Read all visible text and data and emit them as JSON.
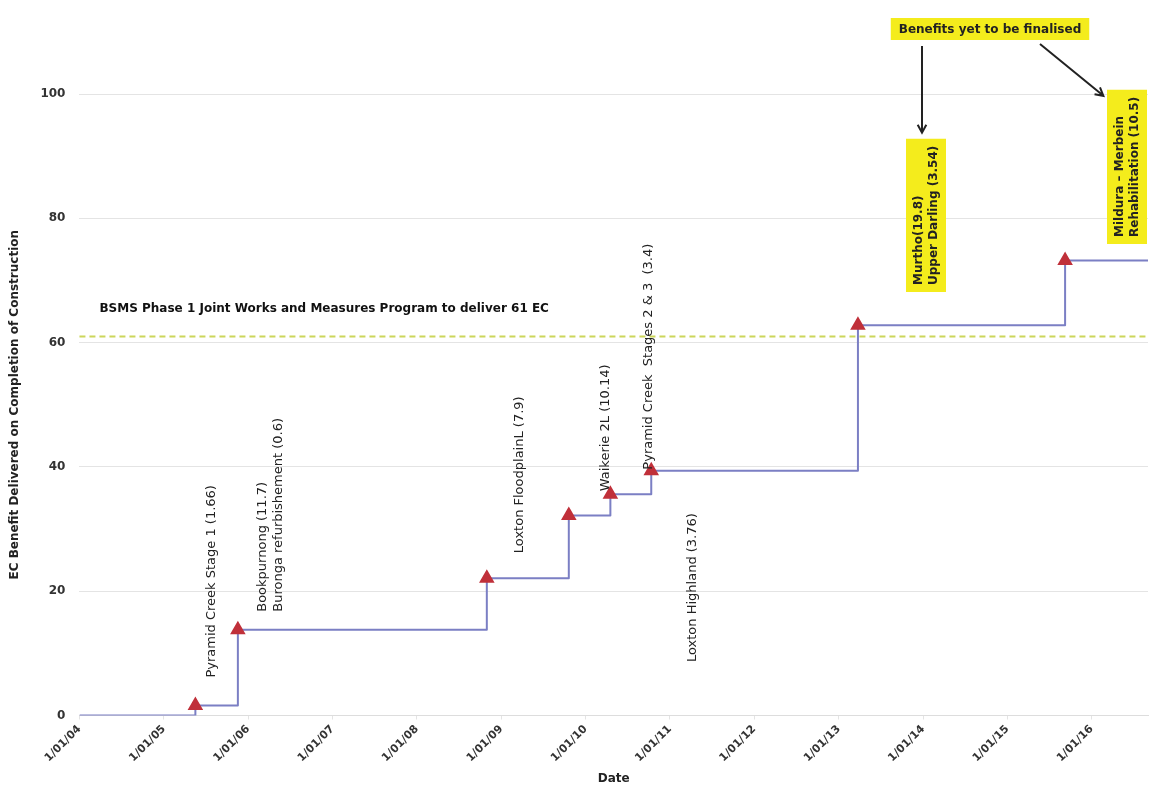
{
  "chart_data": {
    "type": "step",
    "xlabel": "Date",
    "ylabel": "EC Benefit Delivered on Completion of Construction",
    "x": [
      "2004-01-01",
      "2005-05-17",
      "2005-11-17",
      "2008-10-30",
      "2009-10-20",
      "2010-04-18",
      "2010-10-12",
      "2013-03-25",
      "2015-09-08",
      "2016-09-01"
    ],
    "series": [
      {
        "color": "#7b7fc4",
        "values": [
          0,
          1.6,
          13.8,
          22.1,
          32.2,
          35.6,
          39.4,
          62.8,
          73.2,
          73.2
        ],
        "colors": [
          null,
          "#c0303a",
          "#c0303a",
          "#c0303a",
          "#c0303a",
          "#c0303a",
          "#c0303a",
          "#c0303a",
          "#c0303a",
          null
        ]
      }
    ],
    "marker": "triangle",
    "xlim": [
      "2004-01-01",
      "2016-09-01"
    ],
    "xticks": [
      {
        "value": "2004-01-01",
        "label": "1/01/04"
      },
      {
        "value": "2005-01-01",
        "label": "1/01/05"
      },
      {
        "value": "2006-01-01",
        "label": "1/01/06"
      },
      {
        "value": "2007-01-01",
        "label": "1/01/07"
      },
      {
        "value": "2008-01-01",
        "label": "1/01/08"
      },
      {
        "value": "2009-01-01",
        "label": "1/01/09"
      },
      {
        "value": "2010-01-01",
        "label": "1/01/10"
      },
      {
        "value": "2011-01-01",
        "label": "1/01/11"
      },
      {
        "value": "2012-01-01",
        "label": "1/01/12"
      },
      {
        "value": "2013-01-01",
        "label": "1/01/13"
      },
      {
        "value": "2014-01-01",
        "label": "1/01/14"
      },
      {
        "value": "2015-01-01",
        "label": "1/01/15"
      },
      {
        "value": "2016-01-01",
        "label": "1/01/16"
      }
    ],
    "ylim": [
      0,
      100
    ],
    "yticks": [
      0,
      20,
      40,
      60,
      80,
      100
    ],
    "grid": "y",
    "ref_lines": [
      {
        "axis": "y",
        "value": 61,
        "label": "BSMS Phase 1 Joint Works and Measures Program to deliver 61 EC",
        "color": "#ccd65a",
        "line_style": "dashed"
      }
    ],
    "annotations": [
      {
        "text": "Pyramid Creek Stage 1 (1.66)",
        "x": "2005-05-17",
        "y": 1.6
      },
      {
        "text": "Bookpurnong (11.7)\nBuronga refurbishement (0.6)",
        "x": "2005-11-17",
        "y": 13.8
      },
      {
        "text": "Loxton FloodplainL (7.9)",
        "x": "2008-10-30",
        "y": 22.1
      },
      {
        "text": "Waikerie 2L (10.14)",
        "x": "2010-04-18",
        "y": 35.6
      },
      {
        "text": "Pyramid Creek  Stages 2 & 3  (3.4)",
        "x": "2010-10-12",
        "y": 39.4
      },
      "Loxton Highland (3.76)",
      "Benefits yet to be finalised",
      "Murtho(19.8)\nUpper Darling (3.54)",
      "Mildura – Merbein\nRehabilitation (10.5)"
    ]
  }
}
